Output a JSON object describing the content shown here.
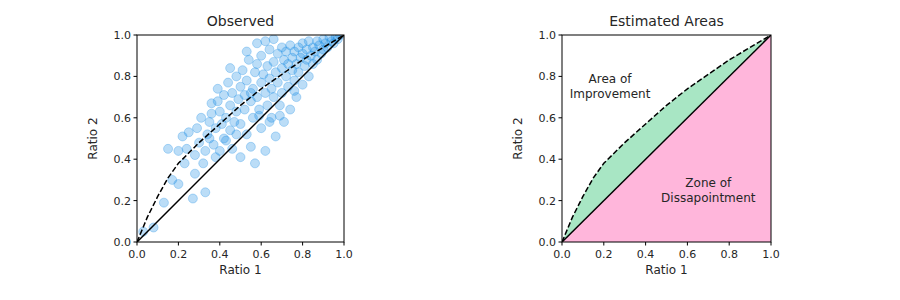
{
  "chart_data": [
    {
      "type": "scatter",
      "title": "Observed",
      "x_label": "Ratio 1",
      "y_label": "Ratio 2",
      "xlim": [
        0,
        1
      ],
      "ylim": [
        0,
        1
      ],
      "xticks": [
        {
          "value": 0,
          "label": "0.0"
        },
        0.2,
        0.4,
        0.6,
        0.8,
        {
          "value": 1,
          "label": "1.0"
        }
      ],
      "yticks": [
        {
          "value": 0,
          "label": "0.0"
        },
        0.2,
        0.4,
        0.6,
        0.8,
        {
          "value": 1,
          "label": "1.0"
        }
      ],
      "series": [
        {
          "type": "scatter",
          "color": "#1e8ee6",
          "marker": "circle",
          "x": [
            0.03,
            0.08,
            0.13,
            0.15,
            0.17,
            0.2,
            0.2,
            0.22,
            0.24,
            0.25,
            0.27,
            0.28,
            0.29,
            0.3,
            0.31,
            0.32,
            0.33,
            0.33,
            0.34,
            0.35,
            0.36,
            0.37,
            0.38,
            0.38,
            0.39,
            0.4,
            0.4,
            0.41,
            0.42,
            0.43,
            0.43,
            0.44,
            0.45,
            0.45,
            0.46,
            0.46,
            0.47,
            0.48,
            0.48,
            0.49,
            0.5,
            0.5,
            0.5,
            0.51,
            0.52,
            0.52,
            0.53,
            0.53,
            0.54,
            0.55,
            0.55,
            0.56,
            0.56,
            0.57,
            0.57,
            0.58,
            0.58,
            0.59,
            0.6,
            0.6,
            0.6,
            0.61,
            0.62,
            0.62,
            0.63,
            0.63,
            0.64,
            0.64,
            0.65,
            0.65,
            0.66,
            0.66,
            0.67,
            0.67,
            0.68,
            0.68,
            0.69,
            0.7,
            0.7,
            0.7,
            0.71,
            0.71,
            0.72,
            0.72,
            0.73,
            0.73,
            0.74,
            0.74,
            0.75,
            0.75,
            0.76,
            0.76,
            0.77,
            0.77,
            0.78,
            0.78,
            0.79,
            0.8,
            0.8,
            0.8,
            0.81,
            0.82,
            0.82,
            0.83,
            0.83,
            0.84,
            0.85,
            0.85,
            0.86,
            0.87,
            0.87,
            0.88,
            0.89,
            0.9,
            0.9,
            0.91,
            0.92,
            0.93,
            0.94,
            0.95,
            0.96,
            0.97,
            0.98,
            0.59,
            0.48,
            0.42,
            0.64,
            0.76,
            0.69,
            0.55,
            0.35,
            0.28,
            0.23,
            0.62,
            0.53,
            0.45,
            0.58,
            0.66,
            0.39,
            0.36
          ],
          "values": [
            0.05,
            0.07,
            0.19,
            0.45,
            0.3,
            0.28,
            0.44,
            0.51,
            0.45,
            0.53,
            0.21,
            0.42,
            0.55,
            0.48,
            0.6,
            0.38,
            0.24,
            0.44,
            0.52,
            0.58,
            0.62,
            0.47,
            0.41,
            0.55,
            0.68,
            0.44,
            0.63,
            0.57,
            0.71,
            0.49,
            0.6,
            0.77,
            0.66,
            0.54,
            0.45,
            0.72,
            0.58,
            0.8,
            0.63,
            0.69,
            0.41,
            0.75,
            0.57,
            0.83,
            0.64,
            0.71,
            0.78,
            0.52,
            0.88,
            0.68,
            0.46,
            0.74,
            0.6,
            0.82,
            0.38,
            0.7,
            0.86,
            0.64,
            0.77,
            0.9,
            0.55,
            0.81,
            0.72,
            0.44,
            0.85,
            0.66,
            0.79,
            0.93,
            0.74,
            0.6,
            0.87,
            0.7,
            0.82,
            0.51,
            0.91,
            0.77,
            0.66,
            0.84,
            0.94,
            0.72,
            0.88,
            0.58,
            0.8,
            0.92,
            0.75,
            0.86,
            0.64,
            0.95,
            0.83,
            0.89,
            0.78,
            0.92,
            0.7,
            0.86,
            0.94,
            0.82,
            0.89,
            0.76,
            0.91,
            0.96,
            0.85,
            0.93,
            0.88,
            0.8,
            0.97,
            0.9,
            0.86,
            0.94,
            0.92,
            0.97,
            0.88,
            0.95,
            0.91,
            0.98,
            0.93,
            0.96,
            0.94,
            0.99,
            0.97,
            0.96,
            0.99,
            0.98,
            1.0,
            0.61,
            0.52,
            0.5,
            0.58,
            0.73,
            0.61,
            0.72,
            0.5,
            0.33,
            0.38,
            0.97,
            0.92,
            0.84,
            0.96,
            0.98,
            0.74,
            0.67
          ]
        },
        {
          "type": "line",
          "color": "#000000",
          "line_style": "dashed",
          "x": [
            0,
            0.05,
            0.1,
            0.15,
            0.2,
            0.3,
            0.4,
            0.5,
            0.6,
            0.7,
            0.8,
            0.9,
            1.0
          ],
          "values": [
            0,
            0.12,
            0.22,
            0.31,
            0.38,
            0.48,
            0.57,
            0.66,
            0.74,
            0.81,
            0.88,
            0.94,
            1.0
          ]
        },
        {
          "type": "line",
          "color": "#000000",
          "line_style": "solid",
          "x": [
            0,
            1
          ],
          "values": [
            0,
            1
          ]
        }
      ]
    },
    {
      "type": "area",
      "title": "Estimated Areas",
      "x_label": "Ratio 1",
      "y_label": "Ratio 2",
      "xlim": [
        0,
        1
      ],
      "ylim": [
        0,
        1
      ],
      "xticks": [
        {
          "value": 0,
          "label": "0.0"
        },
        0.2,
        0.4,
        0.6,
        0.8,
        {
          "value": 1,
          "label": "1.0"
        }
      ],
      "yticks": [
        {
          "value": 0,
          "label": "0.0"
        },
        0.2,
        0.4,
        0.6,
        0.8,
        {
          "value": 1,
          "label": "1.0"
        }
      ],
      "series": [
        {
          "type": "area",
          "color": "#a8e6c4",
          "x": [
            0,
            0.05,
            0.1,
            0.15,
            0.2,
            0.3,
            0.4,
            0.5,
            0.6,
            0.7,
            0.8,
            0.9,
            1.0
          ],
          "values": [
            0,
            0.12,
            0.22,
            0.31,
            0.38,
            0.48,
            0.57,
            0.66,
            0.74,
            0.81,
            0.88,
            0.94,
            1.0
          ],
          "lower": [
            0,
            0.05,
            0.1,
            0.15,
            0.2,
            0.3,
            0.4,
            0.5,
            0.6,
            0.7,
            0.8,
            0.9,
            1.0
          ]
        },
        {
          "type": "area",
          "color": "#ffb6db",
          "x": [
            0,
            1
          ],
          "values": [
            0,
            1
          ],
          "lower": [
            0,
            0
          ]
        },
        {
          "type": "line",
          "color": "#000000",
          "line_style": "dashed",
          "x": [
            0,
            0.05,
            0.1,
            0.15,
            0.2,
            0.3,
            0.4,
            0.5,
            0.6,
            0.7,
            0.8,
            0.9,
            1.0
          ],
          "values": [
            0,
            0.12,
            0.22,
            0.31,
            0.38,
            0.48,
            0.57,
            0.66,
            0.74,
            0.81,
            0.88,
            0.94,
            1.0
          ]
        },
        {
          "type": "line",
          "color": "#000000",
          "line_style": "solid",
          "x": [
            0,
            1
          ],
          "values": [
            0,
            1
          ]
        }
      ],
      "annotations": [
        {
          "text": "Area of\nImprovement",
          "x": 0.23,
          "y": 0.75
        },
        {
          "text": "Zone of\nDissapointment",
          "x": 0.7,
          "y": 0.25
        }
      ]
    }
  ]
}
